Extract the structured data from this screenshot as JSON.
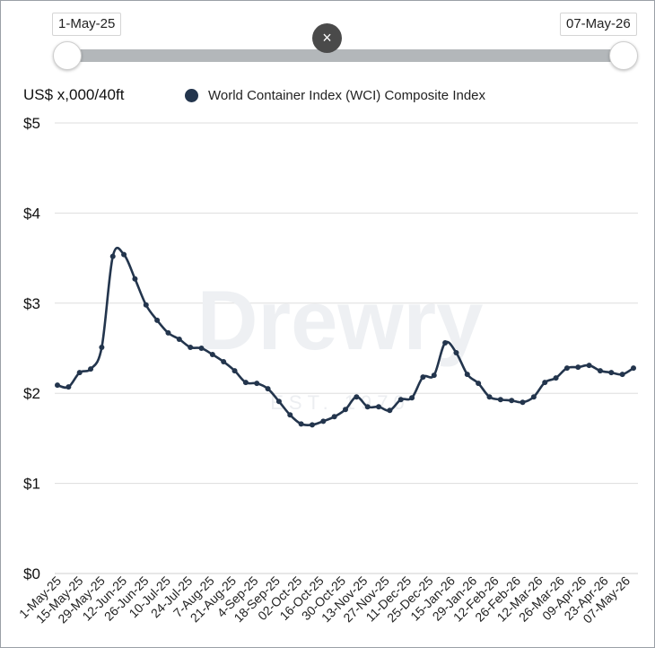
{
  "range_slider": {
    "start_label": "1-May-25",
    "end_label": "07-May-26",
    "reset_icon": "close-icon",
    "reset_glyph": "×"
  },
  "unit_label": "US$ x,000/40ft",
  "watermark": "Drewry EST. 1970",
  "colors": {
    "series": "#23354d",
    "grid": "#dddddd",
    "track": "#b3b7ba"
  },
  "chart_data": {
    "type": "line",
    "ylabel": "US$ x,000/40ft",
    "ylim": [
      0,
      5
    ],
    "y_ticks": [
      "$0",
      "$1",
      "$2",
      "$3",
      "$4",
      "$5"
    ],
    "legend_position": "top",
    "grid": true,
    "x_tick_labels": [
      "1-May-25",
      "15-May-25",
      "29-May-25",
      "12-Jun-25",
      "26-Jun-25",
      "10-Jul-25",
      "24-Jul-25",
      "7-Aug-25",
      "21-Aug-25",
      "4-Sep-25",
      "18-Sep-25",
      "02-Oct-25",
      "16-Oct-25",
      "30-Oct-25",
      "13-Nov-25",
      "27-Nov-25",
      "11-Dec-25",
      "25-Dec-25",
      "15-Jan-26",
      "29-Jan-26",
      "12-Feb-26",
      "26-Feb-26",
      "12-Mar-26",
      "26-Mar-26",
      "09-Apr-26",
      "23-Apr-26",
      "07-May-26"
    ],
    "series": [
      {
        "name": "World Container Index (WCI) Composite Index",
        "values": [
          2.09,
          2.07,
          2.23,
          2.27,
          2.51,
          3.52,
          3.54,
          3.27,
          2.98,
          2.81,
          2.67,
          2.6,
          2.51,
          2.5,
          2.43,
          2.35,
          2.25,
          2.12,
          2.11,
          2.05,
          1.91,
          1.76,
          1.66,
          1.65,
          1.69,
          1.74,
          1.82,
          1.96,
          1.85,
          1.85,
          1.81,
          1.93,
          1.95,
          2.18,
          2.2,
          2.56,
          2.45,
          2.21,
          2.11,
          1.96,
          1.93,
          1.92,
          1.9,
          1.96,
          2.12,
          2.17,
          2.28,
          2.29,
          2.31,
          2.25,
          2.23,
          2.21,
          2.28
        ]
      }
    ]
  }
}
